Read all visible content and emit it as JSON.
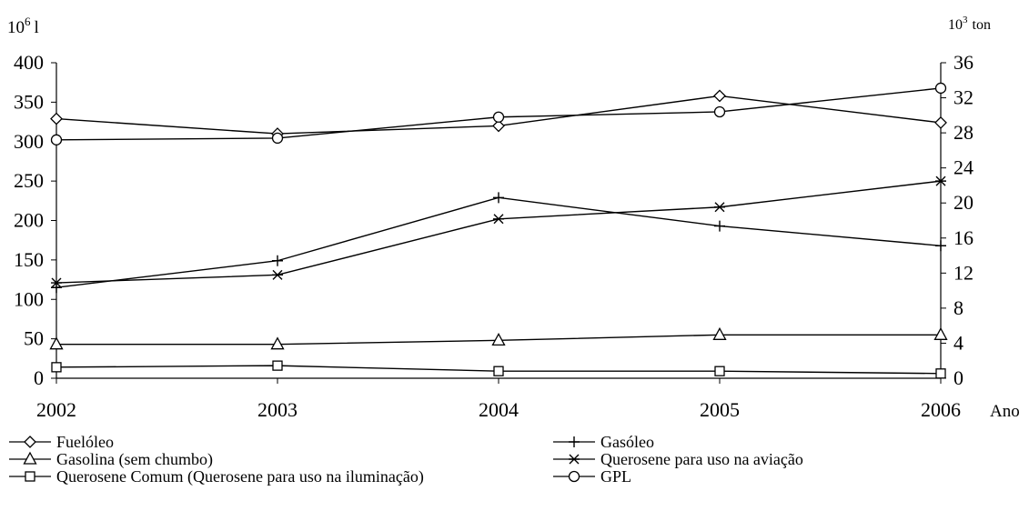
{
  "chart_data": {
    "type": "line",
    "left_axis_unit_base": "10",
    "left_axis_unit_exp": "6",
    "left_axis_unit_suffix": "l",
    "right_axis_unit_base": "10",
    "right_axis_unit_exp": "3",
    "right_axis_unit_suffix": "ton",
    "xlabel": "Ano",
    "x": [
      "2002",
      "2003",
      "2004",
      "2005",
      "2006"
    ],
    "y_left_ticks": [
      "0",
      "50",
      "100",
      "150",
      "200",
      "250",
      "300",
      "350",
      "400"
    ],
    "y_right_ticks": [
      "0",
      "4",
      "8",
      "12",
      "16",
      "20",
      "24",
      "28",
      "32",
      "36"
    ],
    "ylim_left": [
      0,
      400
    ],
    "ylim_right": [
      0,
      36
    ],
    "grid": false,
    "legend_position": "bottom",
    "series": [
      {
        "name": "Fuelóleo",
        "marker": "diamond",
        "axis": "left",
        "values": [
          329,
          310,
          320,
          358,
          324
        ]
      },
      {
        "name": "Gasóleo",
        "marker": "plus",
        "axis": "left",
        "values": [
          115,
          149,
          229,
          193,
          168
        ]
      },
      {
        "name": "Gasolina (sem chumbo)",
        "marker": "triangle",
        "axis": "left",
        "values": [
          43,
          43,
          48,
          55,
          55
        ]
      },
      {
        "name": "Querosene para uso na aviação",
        "marker": "asterisk",
        "axis": "left",
        "values": [
          121,
          131,
          202,
          217,
          250
        ]
      },
      {
        "name": "Querosene Comum (Querosene para uso na iluminação)",
        "marker": "square",
        "axis": "left",
        "values": [
          14,
          16,
          9,
          9,
          6
        ]
      },
      {
        "name": "GPL",
        "marker": "circle",
        "axis": "right",
        "values": [
          27.2,
          27.4,
          29.8,
          30.4,
          33.1
        ]
      }
    ]
  }
}
